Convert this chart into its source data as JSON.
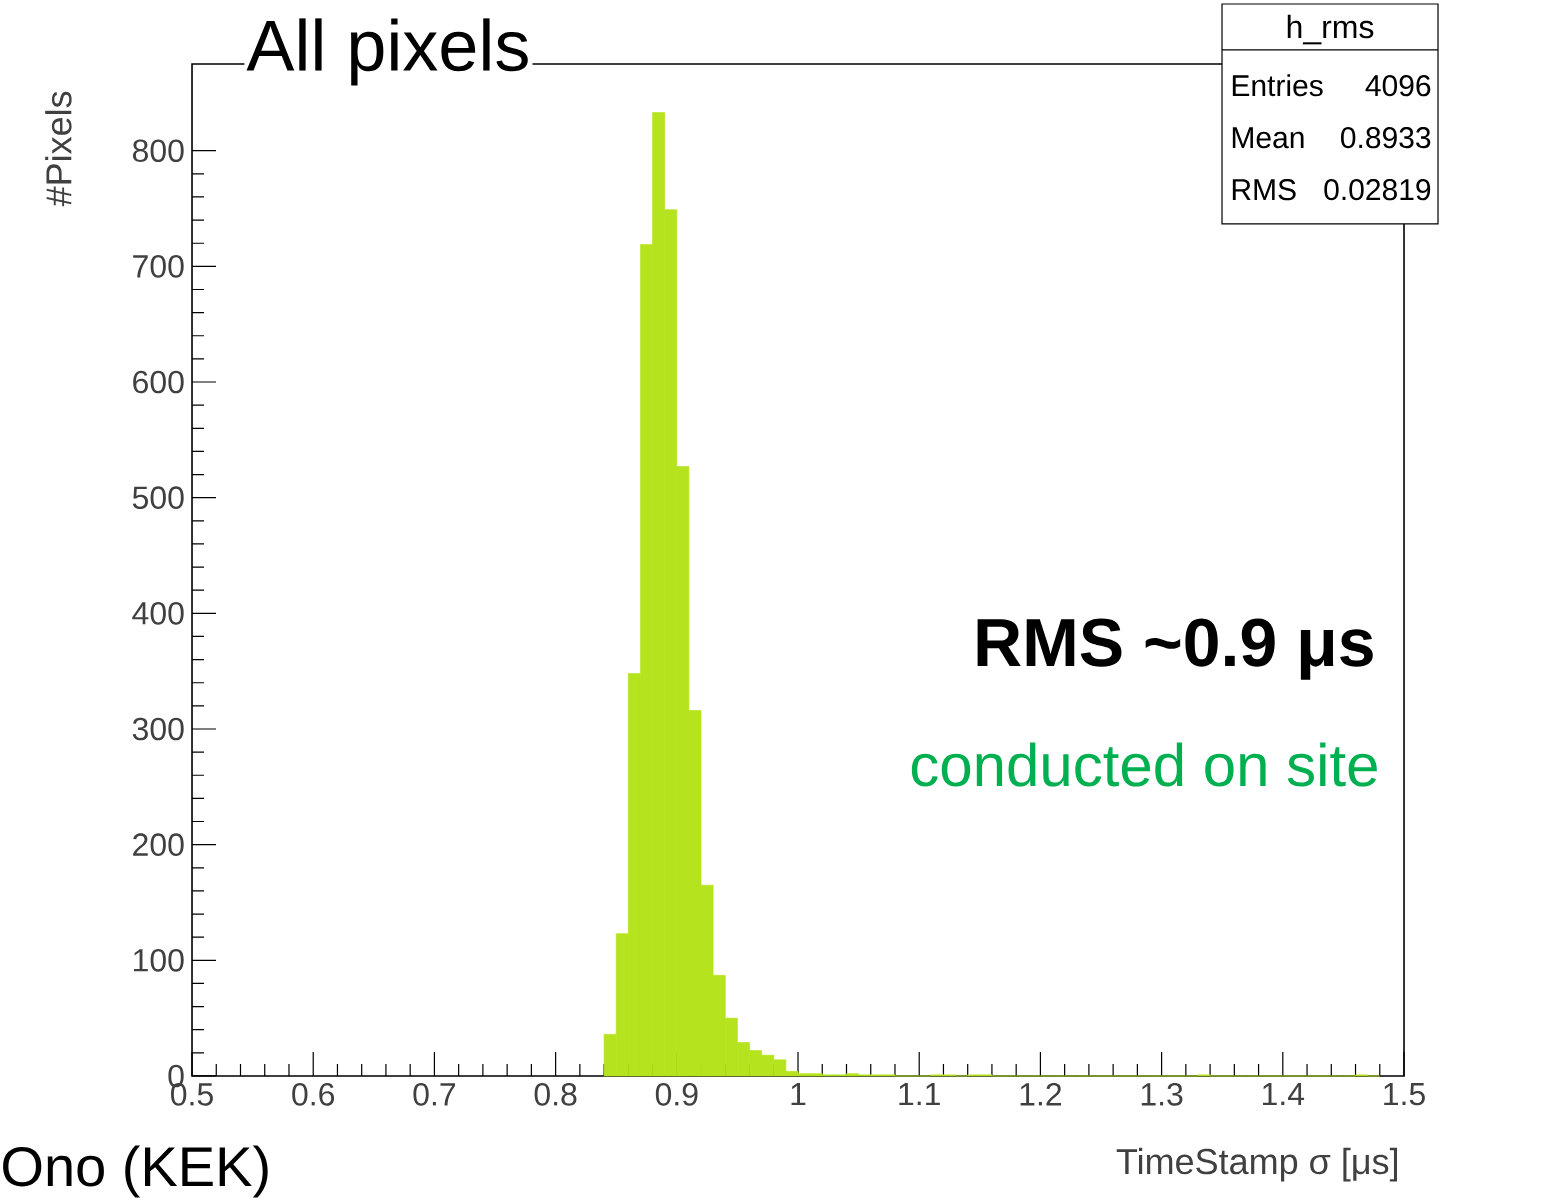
{
  "chart_data": {
    "type": "histogram",
    "title": "All pixels",
    "xlabel": "TimeStamp σ   [μs]",
    "ylabel": "#Pixels",
    "bins": [
      0.84,
      0.85,
      0.86,
      0.87,
      0.88,
      0.89,
      0.9,
      0.91,
      0.92,
      0.93,
      0.94,
      0.95,
      0.96,
      0.97,
      0.98,
      0.99,
      1.0,
      1.01,
      1.02,
      1.03,
      1.04,
      1.05,
      1.06,
      1.07,
      1.08,
      1.09,
      1.1,
      1.11,
      1.12,
      1.13,
      1.14,
      1.15,
      1.16,
      1.17,
      1.18,
      1.19,
      1.2,
      1.21,
      1.22,
      1.23,
      1.24,
      1.25,
      1.26,
      1.27,
      1.28,
      1.29,
      1.3,
      1.31,
      1.32,
      1.33,
      1.34,
      1.35,
      1.36,
      1.37,
      1.38,
      1.39,
      1.4,
      1.41,
      1.42,
      1.43,
      1.44,
      1.45,
      1.46,
      1.47,
      1.48
    ],
    "values": [
      36,
      123,
      348,
      719,
      833,
      749,
      527,
      316,
      165,
      87,
      50,
      29,
      22,
      18,
      14,
      4,
      2,
      2,
      1,
      1,
      2,
      1,
      1,
      1,
      0,
      0,
      0,
      1,
      1,
      0,
      1,
      1,
      0,
      0,
      0,
      0,
      0,
      0,
      0,
      0,
      0,
      0,
      0,
      0,
      0,
      0,
      0,
      0,
      0,
      1,
      0,
      0,
      0,
      0,
      0,
      0,
      0,
      0,
      0,
      0,
      0,
      0,
      1,
      0
    ],
    "color": "#b5e31d",
    "xlim": [
      0.5,
      1.5
    ],
    "xticks": [
      0.5,
      0.6,
      0.7,
      0.8,
      0.9,
      1,
      1.1,
      1.2,
      1.3,
      1.4,
      1.5
    ],
    "ylim": [
      0,
      875
    ],
    "yticks": [
      0,
      100,
      200,
      300,
      400,
      500,
      600,
      700,
      800
    ],
    "annotations": [
      "h_rms",
      "Entries",
      "4096",
      "Mean",
      "0.8933",
      "RMS",
      "0.02819",
      "RMS ~0.9 μs",
      "conducted on site",
      "Ono (KEK)"
    ]
  }
}
